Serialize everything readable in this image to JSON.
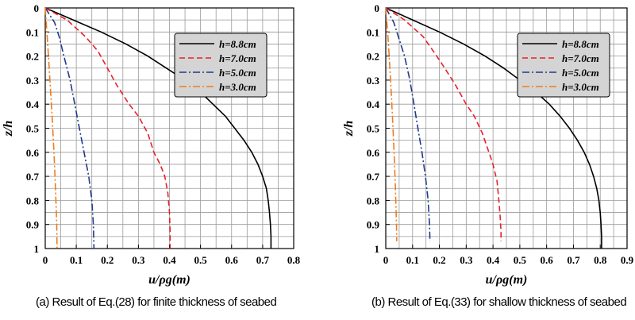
{
  "captions": {
    "a": "(a) Result of Eq.(28) for finite thickness of seabed",
    "b": "(b) Result of Eq.(33) for shallow thickness of seabed"
  },
  "chart_data": [
    {
      "type": "line",
      "xlabel": "u/ρg(m)",
      "ylabel": "z/h",
      "xlim": [
        0,
        0.8
      ],
      "ylim": [
        0,
        1
      ],
      "y_inverted": true,
      "xticks": [
        "0",
        "0.1",
        "0.2",
        "0.3",
        "0.4",
        "0.5",
        "0.6",
        "0.7",
        "0.8"
      ],
      "yticks": [
        "0",
        "0.1",
        "0.2",
        "0.3",
        "0.4",
        "0.5",
        "0.6",
        "0.7",
        "0.8",
        "0.9",
        "1"
      ],
      "grid": true,
      "legend_position": "top-right",
      "series": [
        {
          "name": "h=8.8cm",
          "color": "#000000",
          "dash": "solid",
          "points": [
            [
              0,
              0
            ],
            [
              0.09,
              0.05
            ],
            [
              0.18,
              0.1
            ],
            [
              0.26,
              0.15
            ],
            [
              0.33,
              0.2
            ],
            [
              0.39,
              0.25
            ],
            [
              0.45,
              0.3
            ],
            [
              0.5,
              0.35
            ],
            [
              0.54,
              0.4
            ],
            [
              0.58,
              0.45
            ],
            [
              0.61,
              0.5
            ],
            [
              0.64,
              0.55
            ],
            [
              0.665,
              0.6
            ],
            [
              0.685,
              0.65
            ],
            [
              0.7,
              0.7
            ],
            [
              0.712,
              0.75
            ],
            [
              0.718,
              0.8
            ],
            [
              0.722,
              0.85
            ],
            [
              0.725,
              0.9
            ],
            [
              0.727,
              0.95
            ],
            [
              0.727,
              1.0
            ]
          ]
        },
        {
          "name": "h=7.0cm",
          "color": "#e8202a",
          "dash": "dashed",
          "points": [
            [
              0,
              0
            ],
            [
              0.07,
              0.05
            ],
            [
              0.13,
              0.12
            ],
            [
              0.17,
              0.18
            ],
            [
              0.2,
              0.25
            ],
            [
              0.23,
              0.32
            ],
            [
              0.27,
              0.4
            ],
            [
              0.3,
              0.45
            ],
            [
              0.33,
              0.52
            ],
            [
              0.35,
              0.6
            ],
            [
              0.37,
              0.65
            ],
            [
              0.385,
              0.7
            ],
            [
              0.395,
              0.77
            ],
            [
              0.4,
              0.85
            ],
            [
              0.402,
              0.93
            ],
            [
              0.402,
              1.0
            ]
          ]
        },
        {
          "name": "h=5.0cm",
          "color": "#1f3a8a",
          "dash": "dashdot",
          "points": [
            [
              0,
              0
            ],
            [
              0.03,
              0.06
            ],
            [
              0.045,
              0.12
            ],
            [
              0.06,
              0.2
            ],
            [
              0.08,
              0.3
            ],
            [
              0.095,
              0.4
            ],
            [
              0.11,
              0.5
            ],
            [
              0.125,
              0.6
            ],
            [
              0.14,
              0.7
            ],
            [
              0.15,
              0.8
            ],
            [
              0.155,
              0.9
            ],
            [
              0.157,
              1.0
            ]
          ]
        },
        {
          "name": "h=3.0cm",
          "color": "#f07c1c",
          "dash": "dashdot",
          "points": [
            [
              0,
              0
            ],
            [
              0.008,
              0.15
            ],
            [
              0.015,
              0.3
            ],
            [
              0.022,
              0.45
            ],
            [
              0.028,
              0.6
            ],
            [
              0.033,
              0.75
            ],
            [
              0.037,
              0.9
            ],
            [
              0.038,
              1.0
            ]
          ]
        }
      ]
    },
    {
      "type": "line",
      "xlabel": "u/ρg(m)",
      "ylabel": "z/h",
      "xlim": [
        0,
        0.9
      ],
      "ylim": [
        0,
        1
      ],
      "y_inverted": true,
      "xticks": [
        "0",
        "0.1",
        "0.2",
        "0.3",
        "0.4",
        "0.5",
        "0.6",
        "0.7",
        "0.8",
        "0.9"
      ],
      "yticks": [
        "0",
        "0.1",
        "0.2",
        "0.3",
        "0.4",
        "0.5",
        "0.6",
        "0.7",
        "0.8",
        "0.9",
        "1"
      ],
      "grid": true,
      "legend_position": "top-right",
      "series": [
        {
          "name": "h=8.8cm",
          "color": "#000000",
          "dash": "solid",
          "points": [
            [
              0,
              0
            ],
            [
              0.1,
              0.05
            ],
            [
              0.2,
              0.1
            ],
            [
              0.29,
              0.15
            ],
            [
              0.37,
              0.2
            ],
            [
              0.44,
              0.25
            ],
            [
              0.5,
              0.3
            ],
            [
              0.56,
              0.35
            ],
            [
              0.61,
              0.4
            ],
            [
              0.65,
              0.45
            ],
            [
              0.685,
              0.5
            ],
            [
              0.715,
              0.55
            ],
            [
              0.74,
              0.6
            ],
            [
              0.76,
              0.65
            ],
            [
              0.775,
              0.7
            ],
            [
              0.787,
              0.75
            ],
            [
              0.795,
              0.8
            ],
            [
              0.8,
              0.85
            ],
            [
              0.803,
              0.9
            ],
            [
              0.805,
              0.95
            ],
            [
              0.805,
              1.0
            ]
          ]
        },
        {
          "name": "h=7.0cm",
          "color": "#e8202a",
          "dash": "dashed",
          "points": [
            [
              0,
              0
            ],
            [
              0.07,
              0.05
            ],
            [
              0.14,
              0.12
            ],
            [
              0.19,
              0.2
            ],
            [
              0.22,
              0.25
            ],
            [
              0.26,
              0.32
            ],
            [
              0.3,
              0.4
            ],
            [
              0.33,
              0.45
            ],
            [
              0.36,
              0.52
            ],
            [
              0.385,
              0.6
            ],
            [
              0.4,
              0.65
            ],
            [
              0.415,
              0.72
            ],
            [
              0.422,
              0.8
            ],
            [
              0.427,
              0.87
            ],
            [
              0.43,
              0.93
            ],
            [
              0.43,
              0.97
            ]
          ]
        },
        {
          "name": "h=5.0cm",
          "color": "#1f3a8a",
          "dash": "dashdot",
          "points": [
            [
              0,
              0
            ],
            [
              0.03,
              0.06
            ],
            [
              0.05,
              0.13
            ],
            [
              0.07,
              0.2
            ],
            [
              0.09,
              0.3
            ],
            [
              0.105,
              0.4
            ],
            [
              0.12,
              0.5
            ],
            [
              0.135,
              0.6
            ],
            [
              0.148,
              0.7
            ],
            [
              0.158,
              0.8
            ],
            [
              0.163,
              0.9
            ],
            [
              0.165,
              0.97
            ]
          ]
        },
        {
          "name": "h=3.0cm",
          "color": "#f07c1c",
          "dash": "dashdot",
          "points": [
            [
              0,
              0
            ],
            [
              0.01,
              0.15
            ],
            [
              0.018,
              0.3
            ],
            [
              0.025,
              0.45
            ],
            [
              0.031,
              0.6
            ],
            [
              0.036,
              0.75
            ],
            [
              0.04,
              0.9
            ],
            [
              0.041,
              0.97
            ]
          ]
        }
      ]
    }
  ]
}
